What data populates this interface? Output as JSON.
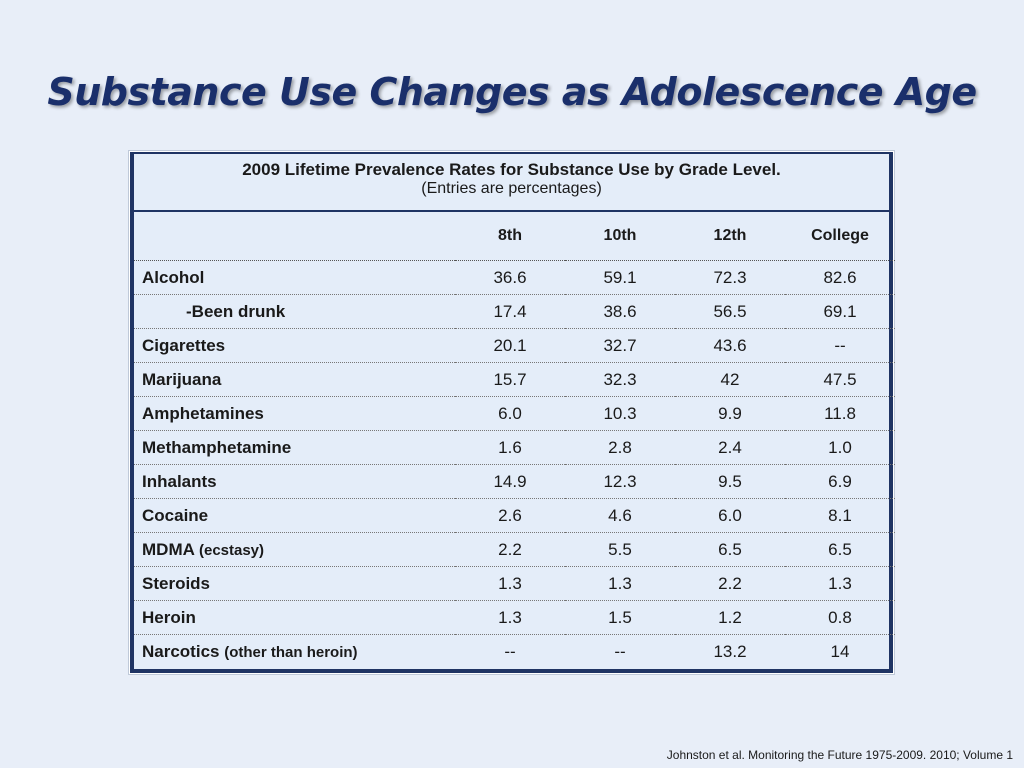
{
  "title": "Substance Use Changes as Adolescence Age",
  "table": {
    "caption": "2009 Lifetime Prevalence Rates for Substance Use by Grade Level.",
    "subcaption": "(Entries are percentages)",
    "columns": [
      "8th",
      "10th",
      "12th",
      "College"
    ],
    "rows": [
      {
        "label": "Alcohol",
        "note": "",
        "indent": false,
        "values": [
          "36.6",
          "59.1",
          "72.3",
          "82.6"
        ]
      },
      {
        "label": "-Been drunk",
        "note": "",
        "indent": true,
        "values": [
          "17.4",
          "38.6",
          "56.5",
          "69.1"
        ]
      },
      {
        "label": "Cigarettes",
        "note": "",
        "indent": false,
        "values": [
          "20.1",
          "32.7",
          "43.6",
          "--"
        ]
      },
      {
        "label": "Marijuana",
        "note": "",
        "indent": false,
        "values": [
          "15.7",
          "32.3",
          "42",
          "47.5"
        ]
      },
      {
        "label": "Amphetamines",
        "note": "",
        "indent": false,
        "values": [
          "6.0",
          "10.3",
          "9.9",
          "11.8"
        ]
      },
      {
        "label": "Methamphetamine",
        "note": "",
        "indent": false,
        "values": [
          "1.6",
          "2.8",
          "2.4",
          "1.0"
        ]
      },
      {
        "label": "Inhalants",
        "note": "",
        "indent": false,
        "values": [
          "14.9",
          "12.3",
          "9.5",
          "6.9"
        ]
      },
      {
        "label": "Cocaine",
        "note": "",
        "indent": false,
        "values": [
          "2.6",
          "4.6",
          "6.0",
          "8.1"
        ]
      },
      {
        "label": "MDMA",
        "note": "(ecstasy)",
        "indent": false,
        "values": [
          "2.2",
          "5.5",
          "6.5",
          "6.5"
        ]
      },
      {
        "label": "Steroids",
        "note": "",
        "indent": false,
        "values": [
          "1.3",
          "1.3",
          "2.2",
          "1.3"
        ]
      },
      {
        "label": "Heroin",
        "note": "",
        "indent": false,
        "values": [
          "1.3",
          "1.5",
          "1.2",
          "0.8"
        ]
      },
      {
        "label": "Narcotics",
        "note": "(other than heroin)",
        "indent": false,
        "values": [
          "--",
          "--",
          "13.2",
          "14"
        ]
      }
    ]
  },
  "citation": "Johnston et al. Monitoring the Future 1975-2009. 2010; Volume 1",
  "colors": {
    "title": "#1a2f6b",
    "background": "#e8eef8",
    "table_border": "#1f3464",
    "table_fill": "#e4edf9"
  }
}
